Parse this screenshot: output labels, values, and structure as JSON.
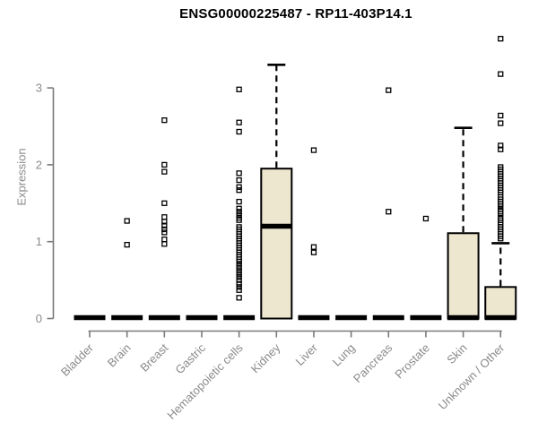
{
  "colors": {
    "background": "#FFFFFF",
    "title": "#000000",
    "axis": "#7A7A7A",
    "label": "#8A8A8A",
    "box_fill": "#EDE7CF",
    "box_border": "#000000",
    "whisker": "#000000",
    "outlier": "#000000"
  },
  "chart_data": {
    "type": "boxplot",
    "title": "ENSG00000225487 - RP11-403P14.1",
    "xlabel": "",
    "ylabel": "Expression",
    "ylim": [
      0,
      3
    ],
    "yticks": [
      0,
      1,
      2,
      3
    ],
    "grid": false,
    "legend": "none",
    "categories": [
      "Bladder",
      "Brain",
      "Breast",
      "Gastric",
      "Hematopoietic cells",
      "Kidney",
      "Liver",
      "Lung",
      "Pancreas",
      "Prostate",
      "Skin",
      "Unknown / Other"
    ],
    "boxes": [
      {
        "name": "Bladder",
        "q1": 0,
        "median": 0,
        "q3": 0,
        "whisker_low": 0,
        "whisker_high": 0,
        "outliers": []
      },
      {
        "name": "Brain",
        "q1": 0,
        "median": 0,
        "q3": 0,
        "whisker_low": 0,
        "whisker_high": 0,
        "outliers": [
          1.27,
          0.96
        ]
      },
      {
        "name": "Breast",
        "q1": 0,
        "median": 0,
        "q3": 0,
        "whisker_low": 0,
        "whisker_high": 0,
        "outliers": [
          2.58,
          2.0,
          1.91,
          1.5,
          1.32,
          1.26,
          1.21,
          1.16,
          1.12,
          1.03,
          0.97
        ]
      },
      {
        "name": "Gastric",
        "q1": 0,
        "median": 0,
        "q3": 0,
        "whisker_low": 0,
        "whisker_high": 0,
        "outliers": []
      },
      {
        "name": "Hematopoietic cells",
        "q1": 0,
        "median": 0,
        "q3": 0,
        "whisker_low": 0,
        "whisker_high": 0,
        "outliers": [
          2.98,
          2.55,
          2.43,
          1.89,
          1.8,
          1.71,
          1.67,
          1.52,
          1.43,
          1.39,
          1.35,
          1.31,
          1.28,
          1.19,
          1.16,
          1.13,
          1.1,
          1.07,
          1.04,
          1.01,
          0.98,
          0.95,
          0.92,
          0.89,
          0.86,
          0.83,
          0.8,
          0.77,
          0.74,
          0.7,
          0.66,
          0.62,
          0.58,
          0.54,
          0.5,
          0.45,
          0.41,
          0.37,
          0.27
        ]
      },
      {
        "name": "Kidney",
        "q1": 0,
        "median": 1.2,
        "q3": 1.95,
        "whisker_low": 0,
        "whisker_high": 3.3,
        "outliers": []
      },
      {
        "name": "Liver",
        "q1": 0,
        "median": 0,
        "q3": 0,
        "whisker_low": 0,
        "whisker_high": 0,
        "outliers": [
          2.19,
          0.93,
          0.86
        ]
      },
      {
        "name": "Lung",
        "q1": 0,
        "median": 0,
        "q3": 0,
        "whisker_low": 0,
        "whisker_high": 0,
        "outliers": []
      },
      {
        "name": "Pancreas",
        "q1": 0,
        "median": 0,
        "q3": 0,
        "whisker_low": 0,
        "whisker_high": 0,
        "outliers": [
          2.97,
          1.39
        ]
      },
      {
        "name": "Prostate",
        "q1": 0,
        "median": 0,
        "q3": 0,
        "whisker_low": 0,
        "whisker_high": 0,
        "outliers": [
          1.3
        ]
      },
      {
        "name": "Skin",
        "q1": 0,
        "median": 0,
        "q3": 1.11,
        "whisker_low": 0,
        "whisker_high": 2.48,
        "outliers": []
      },
      {
        "name": "Unknown / Other",
        "q1": 0,
        "median": 0,
        "q3": 0.41,
        "whisker_low": 0,
        "whisker_high": 0.98,
        "outliers": [
          3.64,
          3.18,
          2.64,
          2.54,
          2.25,
          2.2,
          1.97,
          1.94,
          1.91,
          1.88,
          1.85,
          1.82,
          1.79,
          1.76,
          1.73,
          1.7,
          1.67,
          1.64,
          1.58,
          1.55,
          1.52,
          1.49,
          1.46,
          1.42,
          1.39,
          1.36,
          1.31,
          1.28,
          1.25,
          1.22,
          1.19,
          1.16,
          1.13,
          1.1,
          1.07,
          1.04
        ]
      }
    ]
  }
}
